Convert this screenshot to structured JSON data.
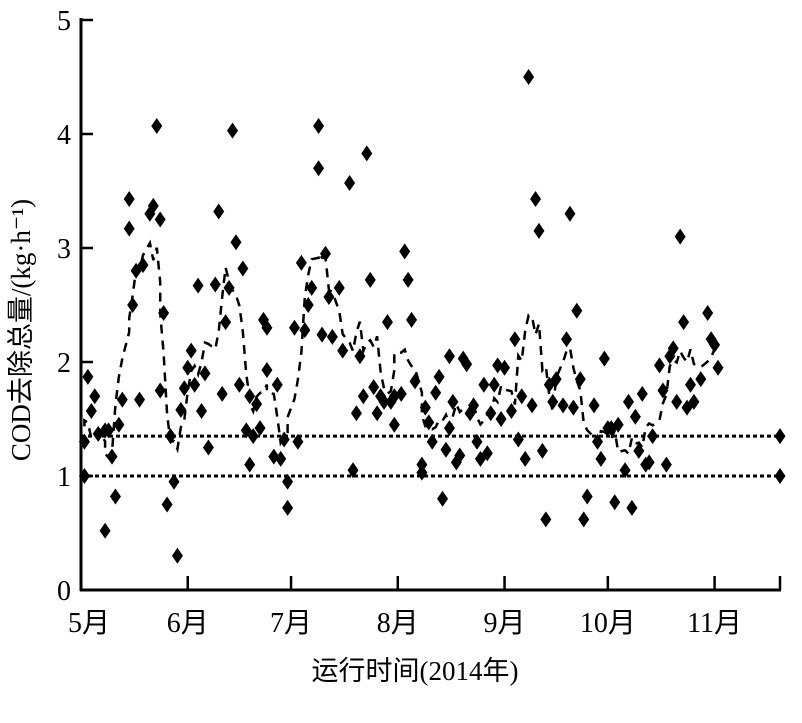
{
  "chart_data": {
    "type": "scatter",
    "title": "",
    "xlabel": "运行时间(2014年)",
    "ylabel": "COD去除总量/(kg·h⁻¹)",
    "ylim": [
      0,
      5
    ],
    "xlim": [
      "05-01",
      "11-20"
    ],
    "year": 2014,
    "yticks": [
      "0",
      "1",
      "2",
      "3",
      "4",
      "5"
    ],
    "xticks": [
      {
        "date": "05-01",
        "label": "5月"
      },
      {
        "date": "06-01",
        "label": "6月"
      },
      {
        "date": "07-01",
        "label": "7月"
      },
      {
        "date": "08-01",
        "label": "8月"
      },
      {
        "date": "09-01",
        "label": "9月"
      },
      {
        "date": "10-01",
        "label": "10月"
      },
      {
        "date": "11-01",
        "label": "11月"
      }
    ],
    "grid": false,
    "marker": "diamond",
    "marker_color": "#000000",
    "trend_line": {
      "style": "dashed",
      "method": "moving average"
    },
    "reference_lines": [
      {
        "y": 1.0,
        "style": "dotted"
      },
      {
        "y": 1.35,
        "style": "dotted"
      }
    ],
    "points": [
      [
        "05-02",
        1.3
      ],
      [
        "05-02",
        1.0
      ],
      [
        "05-03",
        1.87
      ],
      [
        "05-04",
        1.57
      ],
      [
        "05-05",
        1.7
      ],
      [
        "05-06",
        1.37
      ],
      [
        "05-08",
        0.52
      ],
      [
        "05-08",
        1.4
      ],
      [
        "05-09",
        1.4
      ],
      [
        "05-10",
        1.17
      ],
      [
        "05-11",
        0.82
      ],
      [
        "05-12",
        1.45
      ],
      [
        "05-13",
        1.67
      ],
      [
        "05-15",
        3.43
      ],
      [
        "05-15",
        3.17
      ],
      [
        "05-16",
        2.5
      ],
      [
        "05-17",
        2.8
      ],
      [
        "05-18",
        1.67
      ],
      [
        "05-19",
        2.85
      ],
      [
        "05-21",
        3.3
      ],
      [
        "05-22",
        3.37
      ],
      [
        "05-23",
        4.07
      ],
      [
        "05-24",
        3.25
      ],
      [
        "05-24",
        1.75
      ],
      [
        "05-25",
        2.43
      ],
      [
        "05-26",
        0.75
      ],
      [
        "05-27",
        1.35
      ],
      [
        "05-28",
        0.95
      ],
      [
        "05-29",
        0.3
      ],
      [
        "05-30",
        1.58
      ],
      [
        "05-31",
        1.77
      ],
      [
        "06-01",
        1.95
      ],
      [
        "06-02",
        2.1
      ],
      [
        "06-03",
        1.8
      ],
      [
        "06-04",
        2.67
      ],
      [
        "06-05",
        1.57
      ],
      [
        "06-06",
        1.9
      ],
      [
        "06-07",
        1.25
      ],
      [
        "06-09",
        2.68
      ],
      [
        "06-10",
        3.32
      ],
      [
        "06-11",
        1.72
      ],
      [
        "06-12",
        2.35
      ],
      [
        "06-13",
        2.65
      ],
      [
        "06-14",
        4.03
      ],
      [
        "06-15",
        3.05
      ],
      [
        "06-16",
        1.8
      ],
      [
        "06-17",
        2.82
      ],
      [
        "06-18",
        1.4
      ],
      [
        "06-19",
        1.7
      ],
      [
        "06-19",
        1.1
      ],
      [
        "06-20",
        1.35
      ],
      [
        "06-21",
        1.63
      ],
      [
        "06-22",
        1.42
      ],
      [
        "06-23",
        2.37
      ],
      [
        "06-24",
        2.3
      ],
      [
        "06-24",
        1.93
      ],
      [
        "06-26",
        1.17
      ],
      [
        "06-27",
        1.8
      ],
      [
        "06-28",
        1.15
      ],
      [
        "06-29",
        1.32
      ],
      [
        "06-30",
        0.95
      ],
      [
        "06-30",
        0.72
      ],
      [
        "07-02",
        2.3
      ],
      [
        "07-03",
        1.3
      ],
      [
        "07-04",
        2.87
      ],
      [
        "07-05",
        2.28
      ],
      [
        "07-06",
        2.5
      ],
      [
        "07-07",
        2.65
      ],
      [
        "07-09",
        4.07
      ],
      [
        "07-09",
        3.7
      ],
      [
        "07-10",
        2.24
      ],
      [
        "07-11",
        2.95
      ],
      [
        "07-12",
        2.57
      ],
      [
        "07-13",
        2.22
      ],
      [
        "07-15",
        2.65
      ],
      [
        "07-16",
        2.1
      ],
      [
        "07-18",
        3.57
      ],
      [
        "07-19",
        1.05
      ],
      [
        "07-20",
        1.55
      ],
      [
        "07-21",
        2.05
      ],
      [
        "07-22",
        1.7
      ],
      [
        "07-23",
        3.83
      ],
      [
        "07-24",
        2.72
      ],
      [
        "07-25",
        1.78
      ],
      [
        "07-26",
        1.55
      ],
      [
        "07-27",
        1.7
      ],
      [
        "07-28",
        1.65
      ],
      [
        "07-29",
        2.35
      ],
      [
        "07-30",
        1.65
      ],
      [
        "07-31",
        1.7
      ],
      [
        "07-31",
        1.45
      ],
      [
        "08-02",
        1.72
      ],
      [
        "08-03",
        2.97
      ],
      [
        "08-04",
        2.72
      ],
      [
        "08-05",
        2.37
      ],
      [
        "08-06",
        1.83
      ],
      [
        "08-08",
        1.03
      ],
      [
        "08-08",
        1.1
      ],
      [
        "08-09",
        1.6
      ],
      [
        "08-10",
        1.47
      ],
      [
        "08-11",
        1.3
      ],
      [
        "08-12",
        1.73
      ],
      [
        "08-13",
        1.87
      ],
      [
        "08-14",
        0.8
      ],
      [
        "08-15",
        1.23
      ],
      [
        "08-16",
        2.05
      ],
      [
        "08-16",
        1.42
      ],
      [
        "08-17",
        1.65
      ],
      [
        "08-18",
        1.12
      ],
      [
        "08-19",
        1.18
      ],
      [
        "08-20",
        2.03
      ],
      [
        "08-21",
        1.98
      ],
      [
        "08-22",
        1.55
      ],
      [
        "08-23",
        1.62
      ],
      [
        "08-24",
        1.3
      ],
      [
        "08-25",
        1.15
      ],
      [
        "08-26",
        1.8
      ],
      [
        "08-27",
        1.2
      ],
      [
        "08-28",
        1.55
      ],
      [
        "08-29",
        1.8
      ],
      [
        "08-30",
        1.97
      ],
      [
        "08-31",
        1.5
      ],
      [
        "09-01",
        1.95
      ],
      [
        "09-03",
        1.57
      ],
      [
        "09-04",
        2.2
      ],
      [
        "09-05",
        1.32
      ],
      [
        "09-06",
        1.7
      ],
      [
        "09-07",
        1.15
      ],
      [
        "09-08",
        4.5
      ],
      [
        "09-09",
        1.62
      ],
      [
        "09-10",
        3.43
      ],
      [
        "09-11",
        3.15
      ],
      [
        "09-12",
        1.22
      ],
      [
        "09-13",
        0.62
      ],
      [
        "09-14",
        1.8
      ],
      [
        "09-15",
        1.65
      ],
      [
        "09-16",
        1.85
      ],
      [
        "09-18",
        1.62
      ],
      [
        "09-19",
        2.2
      ],
      [
        "09-20",
        3.3
      ],
      [
        "09-21",
        1.6
      ],
      [
        "09-22",
        2.45
      ],
      [
        "09-23",
        1.85
      ],
      [
        "09-24",
        0.62
      ],
      [
        "09-25",
        0.82
      ],
      [
        "09-27",
        1.62
      ],
      [
        "09-28",
        1.3
      ],
      [
        "09-29",
        1.15
      ],
      [
        "09-30",
        2.03
      ],
      [
        "10-01",
        1.42
      ],
      [
        "10-02",
        1.42
      ],
      [
        "10-03",
        0.77
      ],
      [
        "10-04",
        1.45
      ],
      [
        "10-06",
        1.05
      ],
      [
        "10-07",
        1.65
      ],
      [
        "10-08",
        0.72
      ],
      [
        "10-09",
        1.52
      ],
      [
        "10-10",
        1.22
      ],
      [
        "10-11",
        1.72
      ],
      [
        "10-12",
        1.1
      ],
      [
        "10-13",
        1.12
      ],
      [
        "10-14",
        1.35
      ],
      [
        "10-16",
        1.97
      ],
      [
        "10-17",
        1.75
      ],
      [
        "10-18",
        1.1
      ],
      [
        "10-19",
        2.05
      ],
      [
        "10-20",
        2.12
      ],
      [
        "10-21",
        1.65
      ],
      [
        "10-22",
        3.1
      ],
      [
        "10-23",
        2.35
      ],
      [
        "10-24",
        1.6
      ],
      [
        "10-25",
        1.8
      ],
      [
        "10-26",
        1.65
      ],
      [
        "10-28",
        1.85
      ],
      [
        "10-30",
        2.43
      ],
      [
        "10-31",
        2.2
      ],
      [
        "11-01",
        2.15
      ],
      [
        "11-02",
        1.95
      ],
      [
        "11-20",
        1.35
      ],
      [
        "11-20",
        1.0
      ]
    ]
  }
}
